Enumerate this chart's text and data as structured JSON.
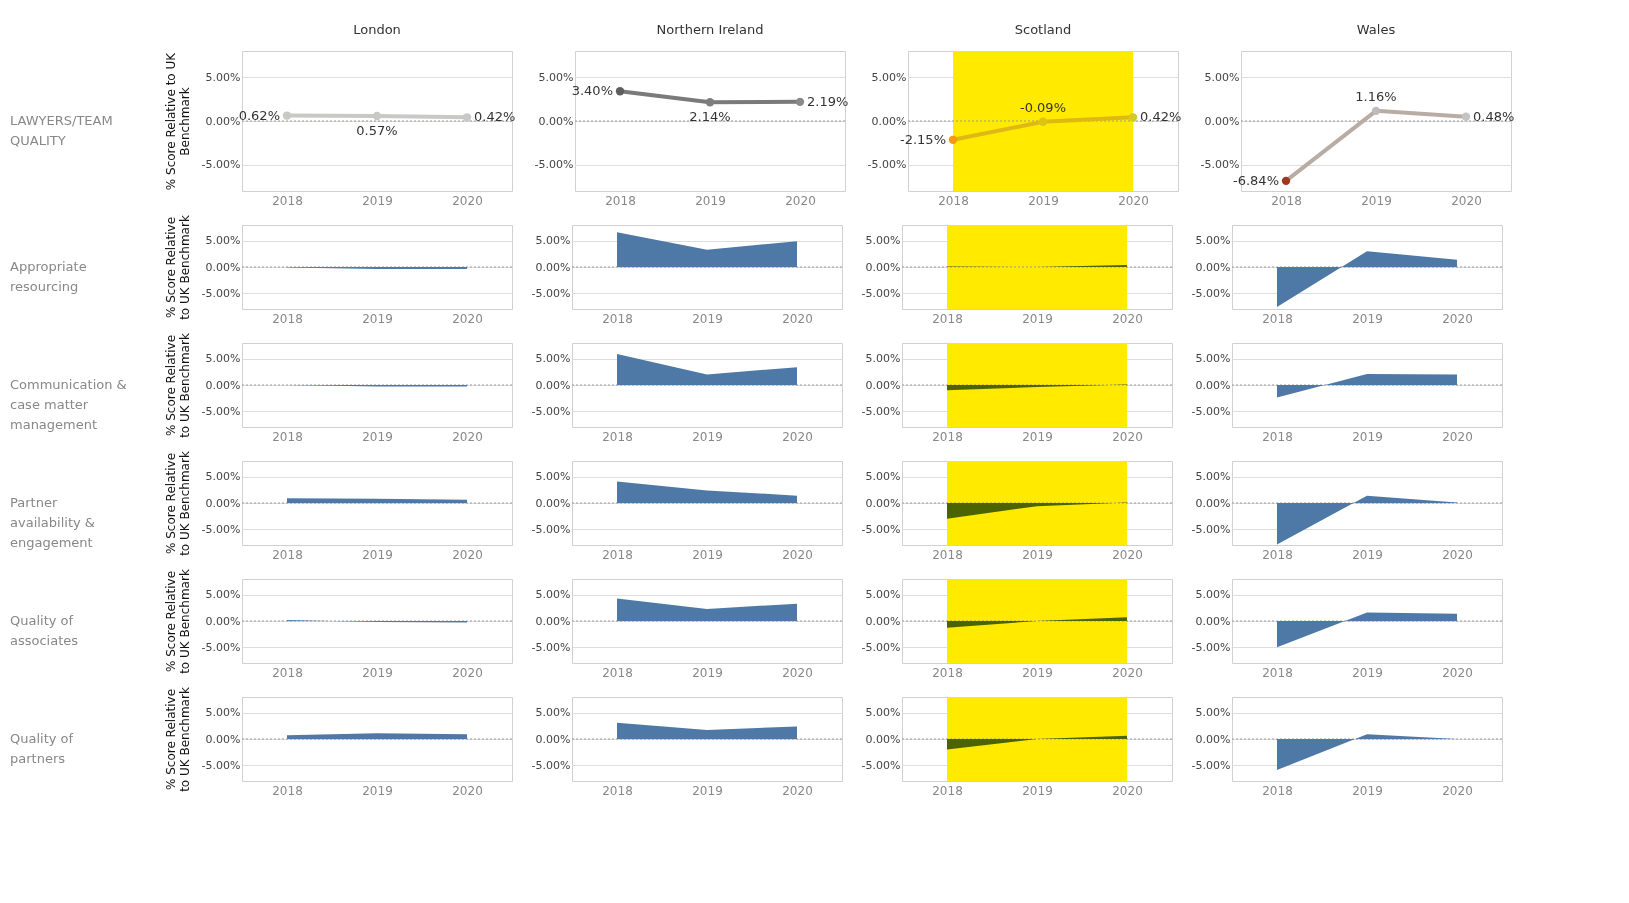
{
  "chart_data": [
    {
      "type": "line",
      "title": "London",
      "ylabel": "% Score Relative to UK Benchmark",
      "annotations": [
        "LAWYERS/TEAM QUALITY"
      ],
      "categories": [
        "2018",
        "2019",
        "2020"
      ],
      "values": [
        0.62,
        0.57,
        0.42
      ],
      "value_labels": [
        "0.62%",
        "0.57%",
        "0.42%"
      ],
      "color": "#c8c8c4",
      "colors": [
        "#c8c8c4",
        "#c8c8c4",
        "#c8c8c4"
      ],
      "marker": "circle",
      "ylim": [
        -8,
        8
      ],
      "yticks": [
        {
          "value": 5,
          "label": "5.00%"
        },
        {
          "value": 0,
          "label": "0.00%"
        },
        {
          "value": -5,
          "label": "-5.00%"
        }
      ],
      "grid": "y",
      "ref_lines": [
        {
          "axis": "y",
          "value": 0,
          "line_style": "dotted"
        }
      ]
    },
    {
      "type": "line",
      "title": "Northern Ireland",
      "categories": [
        "2018",
        "2019",
        "2020"
      ],
      "values": [
        3.4,
        2.14,
        2.19
      ],
      "value_labels": [
        "3.40%",
        "2.14%",
        "2.19%"
      ],
      "color": "#7a7a7a",
      "colors": [
        "#5e5e5e",
        "#7e7e7e",
        "#8a8a8a"
      ],
      "marker": "circle",
      "ylim": [
        -8,
        8
      ],
      "yticks": [
        {
          "value": 5,
          "label": "5.00%"
        },
        {
          "value": 0,
          "label": "0.00%"
        },
        {
          "value": -5,
          "label": "-5.00%"
        }
      ],
      "grid": "y",
      "ref_lines": [
        {
          "axis": "y",
          "value": 0,
          "line_style": "dotted"
        }
      ]
    },
    {
      "type": "line",
      "title": "Scotland",
      "categories": [
        "2018",
        "2019",
        "2020"
      ],
      "values": [
        -2.15,
        -0.09,
        0.42
      ],
      "value_labels": [
        "-2.15%",
        "-0.09%",
        "0.42%"
      ],
      "color": "#e0b814",
      "colors": [
        "#f39a12",
        "#dcc414",
        "#d4c82a"
      ],
      "marker": "circle",
      "ylim": [
        -8,
        8
      ],
      "yticks": [
        {
          "value": 5,
          "label": "5.00%"
        },
        {
          "value": 0,
          "label": "0.00%"
        },
        {
          "value": -5,
          "label": "-5.00%"
        }
      ],
      "grid": "y",
      "ref_lines": [
        {
          "axis": "y",
          "value": 0,
          "line_style": "dotted"
        }
      ],
      "bands": [
        {
          "axis": "x",
          "from": "2018",
          "to": "2020",
          "color": "#ffea00"
        }
      ]
    },
    {
      "type": "line",
      "title": "Wales",
      "categories": [
        "2018",
        "2019",
        "2020"
      ],
      "values": [
        -6.84,
        1.16,
        0.48
      ],
      "value_labels": [
        "-6.84%",
        "1.16%",
        "0.48%"
      ],
      "color": "#b8aca4",
      "colors": [
        "#a0381e",
        "#bcbcbc",
        "#c4c4c4"
      ],
      "marker": "circle",
      "ylim": [
        -8,
        8
      ],
      "yticks": [
        {
          "value": 5,
          "label": "5.00%"
        },
        {
          "value": 0,
          "label": "0.00%"
        },
        {
          "value": -5,
          "label": "-5.00%"
        }
      ],
      "grid": "y",
      "ref_lines": [
        {
          "axis": "y",
          "value": 0,
          "line_style": "dotted"
        }
      ]
    },
    {
      "type": "area",
      "ylabel": "% Score Relative to UK Benchmark",
      "annotations": [
        "Appropriate resourcing"
      ],
      "categories": [
        "2018",
        "2019",
        "2020"
      ],
      "values": [
        -0.1,
        -0.4,
        -0.4
      ],
      "color": "#4e79a7",
      "ylim": [
        -8,
        8
      ],
      "yticks": [
        {
          "value": 5,
          "label": "5.00%"
        },
        {
          "value": 0,
          "label": "0.00%"
        },
        {
          "value": -5,
          "label": "-5.00%"
        }
      ],
      "grid": "y",
      "ref_lines": [
        {
          "axis": "y",
          "value": 0,
          "line_style": "dotted"
        }
      ]
    },
    {
      "type": "area",
      "categories": [
        "2018",
        "2019",
        "2020"
      ],
      "values": [
        6.6,
        3.3,
        4.9
      ],
      "color": "#4e79a7",
      "ylim": [
        -8,
        8
      ],
      "yticks": [
        {
          "value": 5,
          "label": "5.00%"
        },
        {
          "value": 0,
          "label": "0.00%"
        },
        {
          "value": -5,
          "label": "-5.00%"
        }
      ],
      "grid": "y",
      "ref_lines": [
        {
          "axis": "y",
          "value": 0,
          "line_style": "dotted"
        }
      ]
    },
    {
      "type": "area",
      "categories": [
        "2018",
        "2019",
        "2020"
      ],
      "values": [
        0.1,
        0.0,
        0.4
      ],
      "color": "#4b6400",
      "ylim": [
        -8,
        8
      ],
      "yticks": [
        {
          "value": 5,
          "label": "5.00%"
        },
        {
          "value": 0,
          "label": "0.00%"
        },
        {
          "value": -5,
          "label": "-5.00%"
        }
      ],
      "grid": "y",
      "ref_lines": [
        {
          "axis": "y",
          "value": 0,
          "line_style": "dotted"
        }
      ],
      "bands": [
        {
          "axis": "x",
          "from": "2018",
          "to": "2020",
          "color": "#ffea00"
        }
      ]
    },
    {
      "type": "area",
      "categories": [
        "2018",
        "2019",
        "2020"
      ],
      "values": [
        -7.6,
        3.0,
        1.4
      ],
      "color": "#4e79a7",
      "ylim": [
        -8,
        8
      ],
      "yticks": [
        {
          "value": 5,
          "label": "5.00%"
        },
        {
          "value": 0,
          "label": "0.00%"
        },
        {
          "value": -5,
          "label": "-5.00%"
        }
      ],
      "grid": "y",
      "ref_lines": [
        {
          "axis": "y",
          "value": 0,
          "line_style": "dotted"
        }
      ]
    },
    {
      "type": "area",
      "ylabel": "% Score Relative to UK Benchmark",
      "annotations": [
        "Communication & case matter management"
      ],
      "categories": [
        "2018",
        "2019",
        "2020"
      ],
      "values": [
        0.0,
        -0.3,
        -0.3
      ],
      "color": "#4e79a7",
      "ylim": [
        -8,
        8
      ],
      "yticks": [
        {
          "value": 5,
          "label": "5.00%"
        },
        {
          "value": 0,
          "label": "0.00%"
        },
        {
          "value": -5,
          "label": "-5.00%"
        }
      ],
      "grid": "y",
      "ref_lines": [
        {
          "axis": "y",
          "value": 0,
          "line_style": "dotted"
        }
      ]
    },
    {
      "type": "area",
      "categories": [
        "2018",
        "2019",
        "2020"
      ],
      "values": [
        5.9,
        2.0,
        3.4
      ],
      "color": "#4e79a7",
      "ylim": [
        -8,
        8
      ],
      "yticks": [
        {
          "value": 5,
          "label": "5.00%"
        },
        {
          "value": 0,
          "label": "0.00%"
        },
        {
          "value": -5,
          "label": "-5.00%"
        }
      ],
      "grid": "y",
      "ref_lines": [
        {
          "axis": "y",
          "value": 0,
          "line_style": "dotted"
        }
      ]
    },
    {
      "type": "area",
      "categories": [
        "2018",
        "2019",
        "2020"
      ],
      "values": [
        -1.0,
        -0.4,
        0.1
      ],
      "color": "#4b6400",
      "ylim": [
        -8,
        8
      ],
      "yticks": [
        {
          "value": 5,
          "label": "5.00%"
        },
        {
          "value": 0,
          "label": "0.00%"
        },
        {
          "value": -5,
          "label": "-5.00%"
        }
      ],
      "grid": "y",
      "ref_lines": [
        {
          "axis": "y",
          "value": 0,
          "line_style": "dotted"
        }
      ],
      "bands": [
        {
          "axis": "x",
          "from": "2018",
          "to": "2020",
          "color": "#ffea00"
        }
      ]
    },
    {
      "type": "area",
      "categories": [
        "2018",
        "2019",
        "2020"
      ],
      "values": [
        -2.4,
        2.1,
        2.0
      ],
      "color": "#4e79a7",
      "ylim": [
        -8,
        8
      ],
      "yticks": [
        {
          "value": 5,
          "label": "5.00%"
        },
        {
          "value": 0,
          "label": "0.00%"
        },
        {
          "value": -5,
          "label": "-5.00%"
        }
      ],
      "grid": "y",
      "ref_lines": [
        {
          "axis": "y",
          "value": 0,
          "line_style": "dotted"
        }
      ]
    },
    {
      "type": "area",
      "ylabel": "% Score Relative to UK Benchmark",
      "annotations": [
        "Partner availability & engagement"
      ],
      "categories": [
        "2018",
        "2019",
        "2020"
      ],
      "values": [
        0.9,
        0.8,
        0.6
      ],
      "color": "#4e79a7",
      "ylim": [
        -8,
        8
      ],
      "yticks": [
        {
          "value": 5,
          "label": "5.00%"
        },
        {
          "value": 0,
          "label": "0.00%"
        },
        {
          "value": -5,
          "label": "-5.00%"
        }
      ],
      "grid": "y",
      "ref_lines": [
        {
          "axis": "y",
          "value": 0,
          "line_style": "dotted"
        }
      ]
    },
    {
      "type": "area",
      "categories": [
        "2018",
        "2019",
        "2020"
      ],
      "values": [
        4.1,
        2.4,
        1.4
      ],
      "color": "#4e79a7",
      "ylim": [
        -8,
        8
      ],
      "yticks": [
        {
          "value": 5,
          "label": "5.00%"
        },
        {
          "value": 0,
          "label": "0.00%"
        },
        {
          "value": -5,
          "label": "-5.00%"
        }
      ],
      "grid": "y",
      "ref_lines": [
        {
          "axis": "y",
          "value": 0,
          "line_style": "dotted"
        }
      ]
    },
    {
      "type": "area",
      "categories": [
        "2018",
        "2019",
        "2020"
      ],
      "values": [
        -3.0,
        -0.6,
        0.1
      ],
      "color": "#4b6400",
      "ylim": [
        -8,
        8
      ],
      "yticks": [
        {
          "value": 5,
          "label": "5.00%"
        },
        {
          "value": 0,
          "label": "0.00%"
        },
        {
          "value": -5,
          "label": "-5.00%"
        }
      ],
      "grid": "y",
      "ref_lines": [
        {
          "axis": "y",
          "value": 0,
          "line_style": "dotted"
        }
      ],
      "bands": [
        {
          "axis": "x",
          "from": "2018",
          "to": "2020",
          "color": "#ffea00"
        }
      ]
    },
    {
      "type": "area",
      "categories": [
        "2018",
        "2019",
        "2020"
      ],
      "values": [
        -7.9,
        1.4,
        0.1
      ],
      "color": "#4e79a7",
      "ylim": [
        -8,
        8
      ],
      "yticks": [
        {
          "value": 5,
          "label": "5.00%"
        },
        {
          "value": 0,
          "label": "0.00%"
        },
        {
          "value": -5,
          "label": "-5.00%"
        }
      ],
      "grid": "y",
      "ref_lines": [
        {
          "axis": "y",
          "value": 0,
          "line_style": "dotted"
        }
      ]
    },
    {
      "type": "area",
      "ylabel": "% Score Relative to UK Benchmark",
      "annotations": [
        "Quality of associates"
      ],
      "categories": [
        "2018",
        "2019",
        "2020"
      ],
      "values": [
        0.2,
        -0.2,
        -0.3
      ],
      "color": "#4e79a7",
      "ylim": [
        -8,
        8
      ],
      "yticks": [
        {
          "value": 5,
          "label": "5.00%"
        },
        {
          "value": 0,
          "label": "0.00%"
        },
        {
          "value": -5,
          "label": "-5.00%"
        }
      ],
      "grid": "y",
      "ref_lines": [
        {
          "axis": "y",
          "value": 0,
          "line_style": "dotted"
        }
      ]
    },
    {
      "type": "area",
      "categories": [
        "2018",
        "2019",
        "2020"
      ],
      "values": [
        4.3,
        2.3,
        3.3
      ],
      "color": "#4e79a7",
      "ylim": [
        -8,
        8
      ],
      "yticks": [
        {
          "value": 5,
          "label": "5.00%"
        },
        {
          "value": 0,
          "label": "0.00%"
        },
        {
          "value": -5,
          "label": "-5.00%"
        }
      ],
      "grid": "y",
      "ref_lines": [
        {
          "axis": "y",
          "value": 0,
          "line_style": "dotted"
        }
      ]
    },
    {
      "type": "area",
      "categories": [
        "2018",
        "2019",
        "2020"
      ],
      "values": [
        -1.3,
        0.0,
        0.7
      ],
      "color": "#4b6400",
      "ylim": [
        -8,
        8
      ],
      "yticks": [
        {
          "value": 5,
          "label": "5.00%"
        },
        {
          "value": 0,
          "label": "0.00%"
        },
        {
          "value": -5,
          "label": "-5.00%"
        }
      ],
      "grid": "y",
      "ref_lines": [
        {
          "axis": "y",
          "value": 0,
          "line_style": "dotted"
        }
      ],
      "bands": [
        {
          "axis": "x",
          "from": "2018",
          "to": "2020",
          "color": "#ffea00"
        }
      ]
    },
    {
      "type": "area",
      "categories": [
        "2018",
        "2019",
        "2020"
      ],
      "values": [
        -5.0,
        1.6,
        1.4
      ],
      "color": "#4e79a7",
      "ylim": [
        -8,
        8
      ],
      "yticks": [
        {
          "value": 5,
          "label": "5.00%"
        },
        {
          "value": 0,
          "label": "0.00%"
        },
        {
          "value": -5,
          "label": "-5.00%"
        }
      ],
      "grid": "y",
      "ref_lines": [
        {
          "axis": "y",
          "value": 0,
          "line_style": "dotted"
        }
      ]
    },
    {
      "type": "area",
      "ylabel": "% Score Relative to UK Benchmark",
      "annotations": [
        "Quality of partners"
      ],
      "categories": [
        "2018",
        "2019",
        "2020"
      ],
      "values": [
        0.7,
        1.1,
        0.9
      ],
      "color": "#4e79a7",
      "ylim": [
        -8,
        8
      ],
      "yticks": [
        {
          "value": 5,
          "label": "5.00%"
        },
        {
          "value": 0,
          "label": "0.00%"
        },
        {
          "value": -5,
          "label": "-5.00%"
        }
      ],
      "grid": "y",
      "ref_lines": [
        {
          "axis": "y",
          "value": 0,
          "line_style": "dotted"
        }
      ]
    },
    {
      "type": "area",
      "categories": [
        "2018",
        "2019",
        "2020"
      ],
      "values": [
        3.1,
        1.7,
        2.4
      ],
      "color": "#4e79a7",
      "ylim": [
        -8,
        8
      ],
      "yticks": [
        {
          "value": 5,
          "label": "5.00%"
        },
        {
          "value": 0,
          "label": "0.00%"
        },
        {
          "value": -5,
          "label": "-5.00%"
        }
      ],
      "grid": "y",
      "ref_lines": [
        {
          "axis": "y",
          "value": 0,
          "line_style": "dotted"
        }
      ]
    },
    {
      "type": "area",
      "categories": [
        "2018",
        "2019",
        "2020"
      ],
      "values": [
        -2.0,
        0.0,
        0.6
      ],
      "color": "#4b6400",
      "ylim": [
        -8,
        8
      ],
      "yticks": [
        {
          "value": 5,
          "label": "5.00%"
        },
        {
          "value": 0,
          "label": "0.00%"
        },
        {
          "value": -5,
          "label": "-5.00%"
        }
      ],
      "grid": "y",
      "ref_lines": [
        {
          "axis": "y",
          "value": 0,
          "line_style": "dotted"
        }
      ],
      "bands": [
        {
          "axis": "x",
          "from": "2018",
          "to": "2020",
          "color": "#ffea00"
        }
      ]
    },
    {
      "type": "area",
      "categories": [
        "2018",
        "2019",
        "2020"
      ],
      "values": [
        -5.9,
        0.9,
        0.0
      ],
      "color": "#4e79a7",
      "ylim": [
        -8,
        8
      ],
      "yticks": [
        {
          "value": 5,
          "label": "5.00%"
        },
        {
          "value": 0,
          "label": "0.00%"
        },
        {
          "value": -5,
          "label": "-5.00%"
        }
      ],
      "grid": "y",
      "ref_lines": [
        {
          "axis": "y",
          "value": 0,
          "line_style": "dotted"
        }
      ]
    }
  ]
}
